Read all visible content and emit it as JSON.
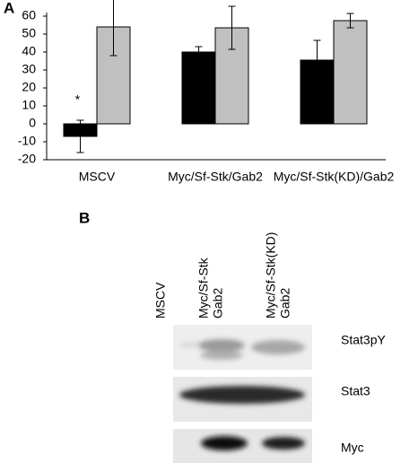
{
  "panels": [
    "A",
    "B"
  ],
  "chart_data": {
    "type": "bar",
    "categories": [
      "MSCV",
      "Myc/Sf-Stk/Gab2",
      "Myc/Sf-Stk(KD)/Gab2"
    ],
    "series": [
      {
        "color": "#000000",
        "values": [
          -7,
          40,
          35.5
        ],
        "errors": [
          9,
          3,
          11
        ]
      },
      {
        "color": "#c0c0c0",
        "values": [
          54,
          53.5,
          57.5
        ],
        "errors": [
          16,
          12,
          4
        ]
      }
    ],
    "annotation": "*",
    "ylim": [
      -20,
      60
    ],
    "yticks": [
      -20,
      -10,
      0,
      10,
      20,
      30,
      40,
      50,
      60
    ],
    "grid": false
  },
  "blot": {
    "lanes": [
      [
        "MSCV"
      ],
      [
        "Myc/Sf-Stk",
        "Gab2"
      ],
      [
        "Myc/Sf-Stk(KD)",
        "Gab2"
      ]
    ],
    "rows": [
      "Stat3pY",
      "Stat3",
      "Myc"
    ]
  }
}
